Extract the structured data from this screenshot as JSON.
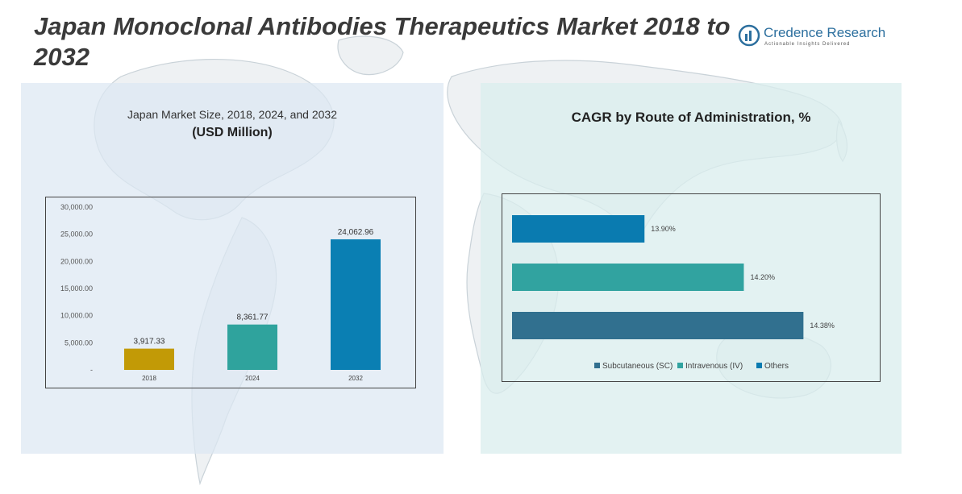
{
  "header": {
    "title": "Japan Monoclonal Antibodies Therapeutics Market 2018 to 2032",
    "brand_name": "Credence Research",
    "brand_tagline": "Actionable Insights Delivered",
    "brand_icon": "credence-logo-icon"
  },
  "left_panel": {
    "subtitle": "Japan Market Size, 2018, 2024, and 2032",
    "unit": "(USD Million)"
  },
  "right_panel": {
    "title": "CAGR by Route of Administration, %"
  },
  "chart_data": [
    {
      "type": "bar",
      "title": "Japan Market Size, 2018, 2024, and 2032",
      "ylabel": "(USD Million)",
      "categories": [
        "2018",
        "2024",
        "2032"
      ],
      "values": [
        3917.33,
        8361.77,
        24062.96
      ],
      "value_labels": [
        "3,917.33",
        "8,361.77",
        "24,062.96"
      ],
      "colors": [
        "#c29a06",
        "#2fa39d",
        "#0a7fb3"
      ],
      "ylim": [
        0,
        30000
      ],
      "y_ticks": [
        0,
        5000,
        10000,
        15000,
        20000,
        25000,
        30000
      ],
      "y_tick_labels": [
        "-",
        "5,000.00",
        "10,000.00",
        "15,000.00",
        "20,000.00",
        "25,000.00",
        "30,000.00"
      ],
      "grid": false
    },
    {
      "type": "bar",
      "orientation": "horizontal",
      "title": "CAGR by Route of Administration, %",
      "series": [
        {
          "name": "Subcutaneous (SC)",
          "value": 14.38,
          "label": "14.38%",
          "color": "#31708f"
        },
        {
          "name": "Intravenous (IV)",
          "value": 14.2,
          "label": "14.20%",
          "color": "#31a3a0"
        },
        {
          "name": "Others",
          "value": 13.9,
          "label": "13.90%",
          "color": "#0a7bb0"
        }
      ],
      "draw_order_top_to_bottom": [
        "Others",
        "Intravenous (IV)",
        "Subcutaneous (SC)"
      ],
      "xlim": [
        13.5,
        14.44
      ],
      "legend": "bottom",
      "grid": false
    }
  ]
}
